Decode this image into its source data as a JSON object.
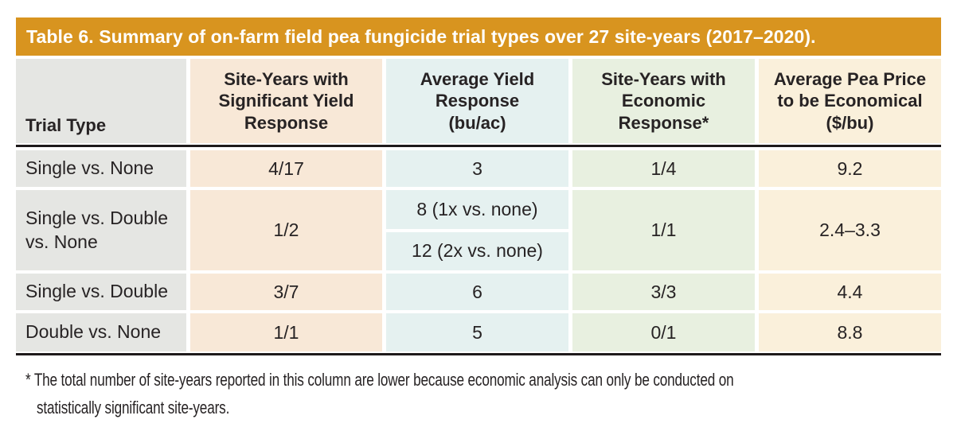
{
  "title": "Table 6. Summary of on-farm field pea fungicide trial types over 27 site-years (2017–2020).",
  "table": {
    "columns": [
      {
        "label": "Trial Type"
      },
      {
        "label": "Site-Years with Significant Yield Response"
      },
      {
        "label": "Average Yield Response (bu/ac)"
      },
      {
        "label": "Site-Years with Economic Response*"
      },
      {
        "label": "Average Pea Price to be Economical ($/bu)"
      }
    ],
    "rows": [
      {
        "trial_type": "Single vs. None",
        "significant_yield": "4/17",
        "yield_response": [
          "3"
        ],
        "economic_response": "1/4",
        "pea_price": "9.2"
      },
      {
        "trial_type": "Single vs. Double vs. None",
        "significant_yield": "1/2",
        "yield_response": [
          "8 (1x vs. none)",
          "12 (2x vs. none)"
        ],
        "economic_response": "1/1",
        "pea_price": "2.4–3.3"
      },
      {
        "trial_type": "Single vs. Double",
        "significant_yield": "3/7",
        "yield_response": [
          "6"
        ],
        "economic_response": "3/3",
        "pea_price": "4.4"
      },
      {
        "trial_type": "Double vs. None",
        "significant_yield": "1/1",
        "yield_response": [
          "5"
        ],
        "economic_response": "0/1",
        "pea_price": "8.8"
      }
    ]
  },
  "footnote": {
    "line1": "* The total number of site-years reported in this column are lower because economic analysis can only be conducted on",
    "line2": "statistically significant site-years."
  },
  "colors": {
    "header_bar": "#D8941F",
    "col_gray": "#E5E6E3",
    "col_peach": "#F8E8D7",
    "col_blue": "#E5F1F0",
    "col_green": "#E8F0E0",
    "col_cream": "#FAF0DB",
    "text": "#272324",
    "rule": "#1E1A1B"
  }
}
